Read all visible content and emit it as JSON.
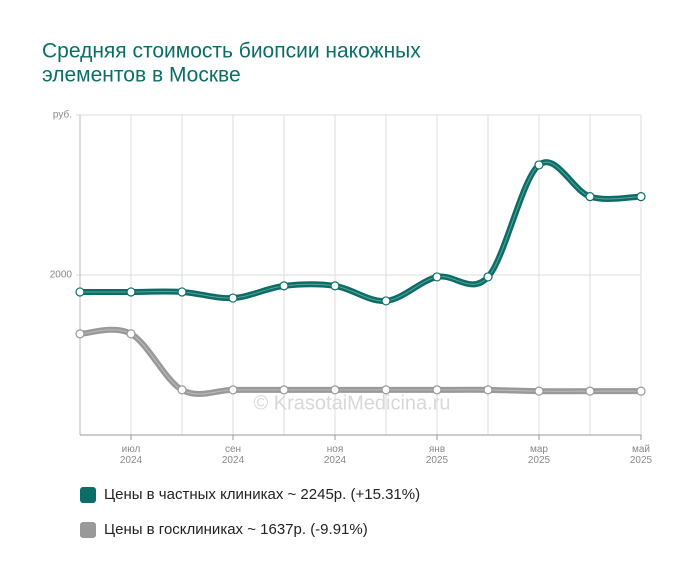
{
  "chart_data": {
    "type": "line",
    "title": [
      "Средняя стоимость биопсии накожных",
      "элементов в Москве"
    ],
    "watermark": "© KrasotaiMedicina.ru",
    "categories": [
      null,
      "июл 2024",
      null,
      "сен 2024",
      null,
      "ноя 2024",
      null,
      "янв 2025",
      null,
      "мар 2025",
      null,
      "май 2025"
    ],
    "series": [
      {
        "name": "Цены в частных клиниках ~ 2245р. (+15.31%)",
        "color": "#0b6e66",
        "values": [
          1947,
          1947,
          1947,
          1928,
          1966,
          1966,
          1919,
          1994,
          1994,
          2344,
          2245,
          2245
        ]
      },
      {
        "name": "Цены в госклиниках ~ 1637р. (-9.91%)",
        "color": "#999999",
        "values": [
          1816,
          1816,
          1641,
          1641,
          1641,
          1641,
          1641,
          1641,
          1641,
          1637,
          1637,
          1637
        ]
      }
    ],
    "ylim": [
      1500,
      2500
    ],
    "yticks": [
      2000,
      {
        "value": 2500,
        "label": "руб."
      }
    ],
    "grid": true
  }
}
